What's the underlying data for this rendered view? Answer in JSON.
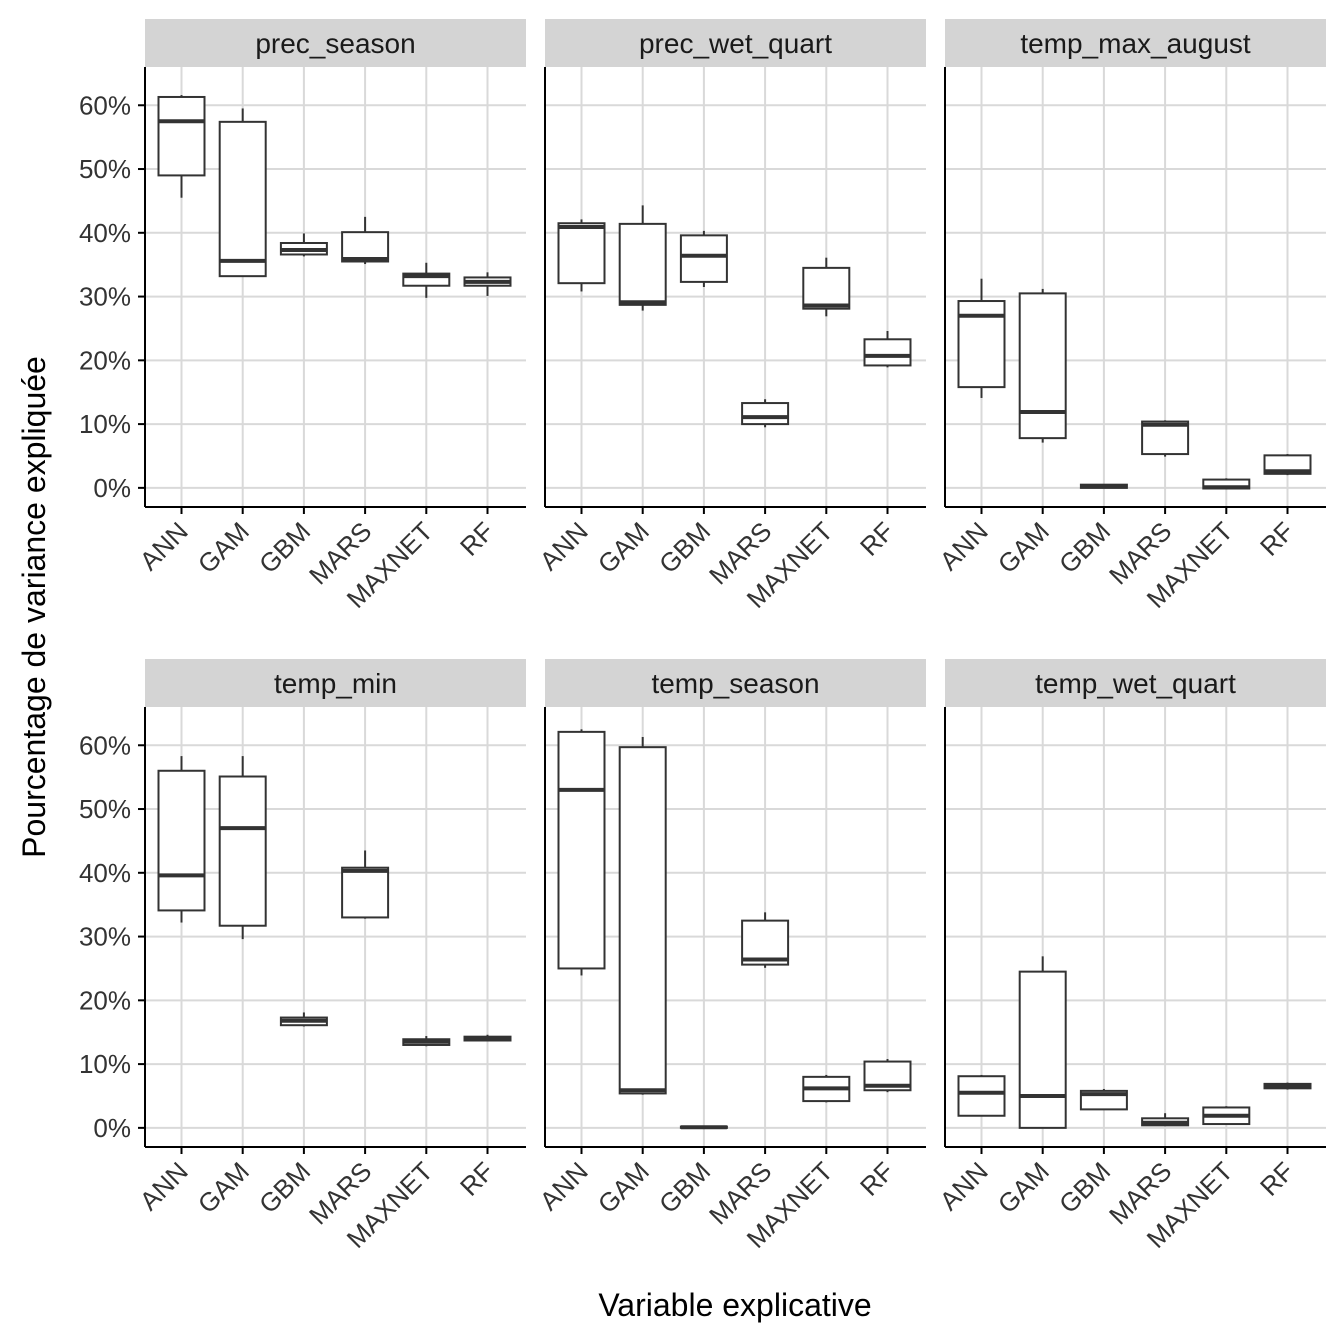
{
  "chart_data": {
    "type": "boxplot",
    "xlabel": "Variable explicative",
    "ylabel": "Pourcentage de variance expliquée",
    "categories": [
      "ANN",
      "GAM",
      "GBM",
      "MARS",
      "MAXNET",
      "RF"
    ],
    "ylim": [
      -3,
      66
    ],
    "y_ticks": [
      0,
      10,
      20,
      30,
      40,
      50,
      60
    ],
    "y_tick_labels": [
      "0%",
      "10%",
      "20%",
      "30%",
      "40%",
      "50%",
      "60%"
    ],
    "grid": true,
    "facets": [
      {
        "title": "prec_season",
        "boxes": [
          {
            "category": "ANN",
            "min": 45.5,
            "q1": 49,
            "median": 57.5,
            "q3": 61.3,
            "max": 61.6
          },
          {
            "category": "GAM",
            "min": 33.2,
            "q1": 33.2,
            "median": 35.6,
            "q3": 57.4,
            "max": 59.5
          },
          {
            "category": "GBM",
            "min": 36.3,
            "q1": 36.6,
            "median": 37.3,
            "q3": 38.4,
            "max": 39.9
          },
          {
            "category": "MARS",
            "min": 35.1,
            "q1": 35.5,
            "median": 35.9,
            "q3": 40.1,
            "max": 42.5
          },
          {
            "category": "MAXNET",
            "min": 29.8,
            "q1": 31.7,
            "median": 33.2,
            "q3": 33.6,
            "max": 35.3
          },
          {
            "category": "RF",
            "min": 30.1,
            "q1": 31.7,
            "median": 32.3,
            "q3": 33,
            "max": 33.8
          }
        ]
      },
      {
        "title": "prec_wet_quart",
        "boxes": [
          {
            "category": "ANN",
            "min": 30.8,
            "q1": 32.1,
            "median": 40.9,
            "q3": 41.5,
            "max": 42.1
          },
          {
            "category": "GAM",
            "min": 27.8,
            "q1": 28.7,
            "median": 29.1,
            "q3": 41.4,
            "max": 44.3
          },
          {
            "category": "GBM",
            "min": 31.5,
            "q1": 32.3,
            "median": 36.4,
            "q3": 39.6,
            "max": 40.3
          },
          {
            "category": "MARS",
            "min": 9.5,
            "q1": 10,
            "median": 11.1,
            "q3": 13.3,
            "max": 13.9
          },
          {
            "category": "MAXNET",
            "min": 26.9,
            "q1": 28.1,
            "median": 28.6,
            "q3": 34.5,
            "max": 36.1
          },
          {
            "category": "RF",
            "min": 18.9,
            "q1": 19.2,
            "median": 20.7,
            "q3": 23.3,
            "max": 24.6
          }
        ]
      },
      {
        "title": "temp_max_august",
        "boxes": [
          {
            "category": "ANN",
            "min": 14.1,
            "q1": 15.8,
            "median": 27,
            "q3": 29.3,
            "max": 32.8
          },
          {
            "category": "GAM",
            "min": 7.1,
            "q1": 7.8,
            "median": 11.9,
            "q3": 30.5,
            "max": 31.2
          },
          {
            "category": "GBM",
            "min": -0.1,
            "q1": 0,
            "median": 0.2,
            "q3": 0.5,
            "max": 0.6
          },
          {
            "category": "MARS",
            "min": 4.9,
            "q1": 5.3,
            "median": 9.9,
            "q3": 10.4,
            "max": 10.6
          },
          {
            "category": "MAXNET",
            "min": -0.2,
            "q1": -0.1,
            "median": 0.1,
            "q3": 1.3,
            "max": 1.5
          },
          {
            "category": "RF",
            "min": 2,
            "q1": 2.2,
            "median": 2.6,
            "q3": 5.1,
            "max": 5.3
          }
        ]
      },
      {
        "title": "temp_min",
        "boxes": [
          {
            "category": "ANN",
            "min": 32.2,
            "q1": 34.1,
            "median": 39.6,
            "q3": 56,
            "max": 58.3
          },
          {
            "category": "GAM",
            "min": 29.6,
            "q1": 31.7,
            "median": 47,
            "q3": 55.1,
            "max": 58.3
          },
          {
            "category": "GBM",
            "min": 15.9,
            "q1": 16.1,
            "median": 16.8,
            "q3": 17.3,
            "max": 18.1
          },
          {
            "category": "MARS",
            "min": 32.8,
            "q1": 33,
            "median": 40.3,
            "q3": 40.8,
            "max": 43.5
          },
          {
            "category": "MAXNET",
            "min": 12.8,
            "q1": 13,
            "median": 13.5,
            "q3": 13.9,
            "max": 14.4
          },
          {
            "category": "RF",
            "min": 13.6,
            "q1": 13.7,
            "median": 14,
            "q3": 14.3,
            "max": 14.6
          }
        ]
      },
      {
        "title": "temp_season",
        "boxes": [
          {
            "category": "ANN",
            "min": 23.9,
            "q1": 25,
            "median": 53,
            "q3": 62.1,
            "max": 62.5
          },
          {
            "category": "GAM",
            "min": 5.2,
            "q1": 5.4,
            "median": 5.9,
            "q3": 59.7,
            "max": 61.3
          },
          {
            "category": "GBM",
            "min": -0.1,
            "q1": 0,
            "median": 0.1,
            "q3": 0.2,
            "max": 0.3
          },
          {
            "category": "MARS",
            "min": 25.1,
            "q1": 25.6,
            "median": 26.4,
            "q3": 32.5,
            "max": 33.8
          },
          {
            "category": "MAXNET",
            "min": 4,
            "q1": 4.2,
            "median": 6.2,
            "q3": 8,
            "max": 8.3
          },
          {
            "category": "RF",
            "min": 5.6,
            "q1": 5.9,
            "median": 6.6,
            "q3": 10.4,
            "max": 10.8
          }
        ]
      },
      {
        "title": "temp_wet_quart",
        "boxes": [
          {
            "category": "ANN",
            "min": 1.8,
            "q1": 1.9,
            "median": 5.5,
            "q3": 8.1,
            "max": 8.3
          },
          {
            "category": "GAM",
            "min": -0.1,
            "q1": 0,
            "median": 5,
            "q3": 24.5,
            "max": 26.9
          },
          {
            "category": "GBM",
            "min": 2.8,
            "q1": 2.9,
            "median": 5.3,
            "q3": 5.8,
            "max": 6.1
          },
          {
            "category": "MARS",
            "min": 0.3,
            "q1": 0.4,
            "median": 0.8,
            "q3": 1.5,
            "max": 2.3
          },
          {
            "category": "MAXNET",
            "min": 0.5,
            "q1": 0.6,
            "median": 1.9,
            "q3": 3.2,
            "max": 3.4
          },
          {
            "category": "RF",
            "min": 6,
            "q1": 6.2,
            "median": 6.6,
            "q3": 6.9,
            "max": 7.1
          }
        ]
      }
    ],
    "colors": {
      "box_stroke": "#333333",
      "box_fill": "#ffffff",
      "grid": "#d9d9d9",
      "strip_fill": "#d4d4d4",
      "axis": "#000000",
      "text": "#333333"
    }
  }
}
